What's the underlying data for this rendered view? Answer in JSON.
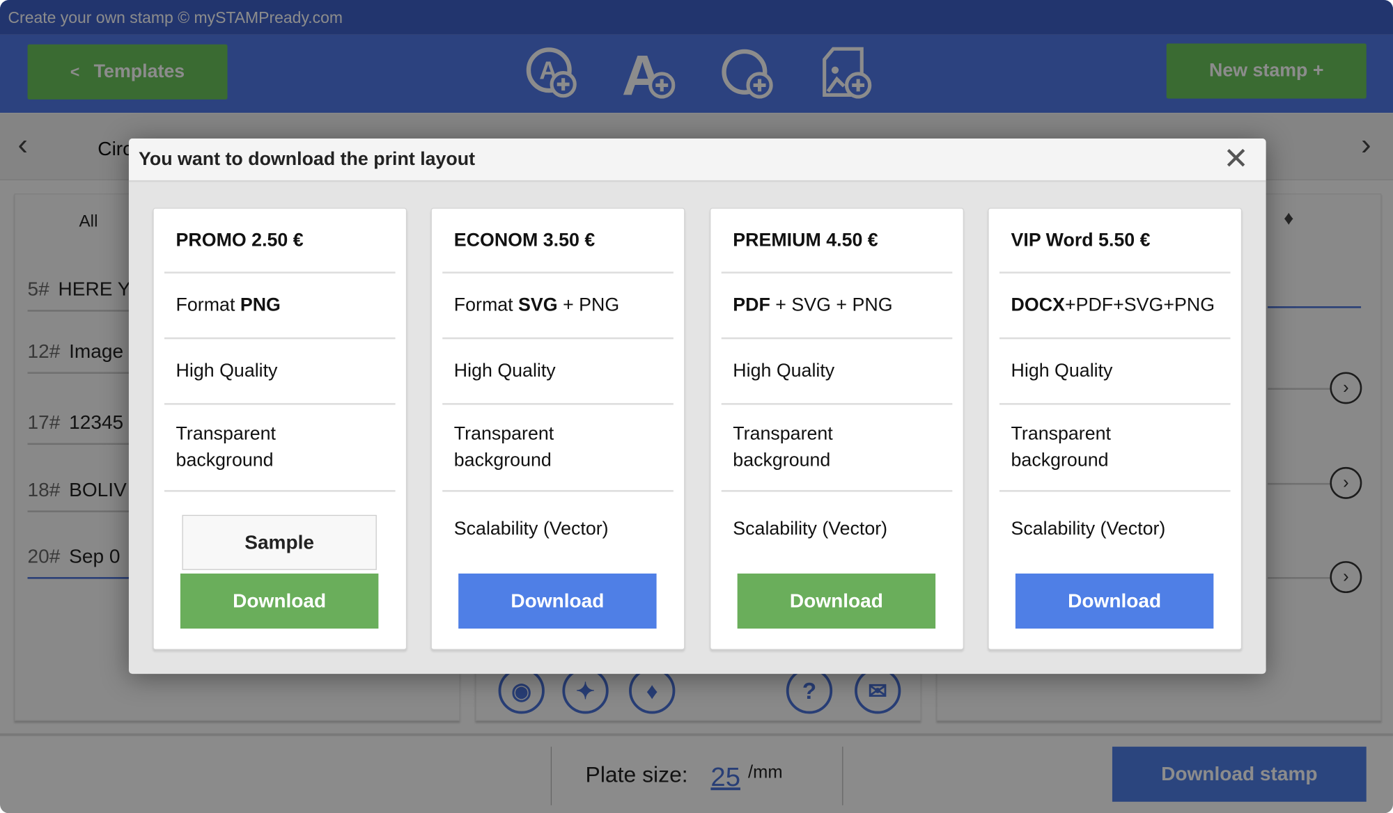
{
  "app": {
    "title": "Create your own stamp © mySTAMPready.com"
  },
  "toolbar": {
    "templates_label": "Templates",
    "templates_chevron": "<",
    "new_stamp_label": "New stamp +",
    "tools": [
      "add-circle-text-icon",
      "add-text-icon",
      "add-shape-icon",
      "add-image-icon"
    ]
  },
  "nav": {
    "current": "Circ"
  },
  "left_panel": {
    "tab": "All",
    "items": [
      {
        "num": "5#",
        "label": "HERE Y"
      },
      {
        "num": "12#",
        "label": "Image"
      },
      {
        "num": "17#",
        "label": "12345"
      },
      {
        "num": "18#",
        "label": "BOLIV"
      },
      {
        "num": "20#",
        "label": "Sep 0"
      }
    ]
  },
  "bottom": {
    "plate_label": "Plate size:",
    "plate_value": "25",
    "plate_unit": "/mm",
    "download_stamp": "Download stamp"
  },
  "modal": {
    "title": "You want to download the print layout",
    "plans": [
      {
        "title": "PROMO 2.50 €",
        "format_pre": "Format ",
        "format_bold": "PNG",
        "format_rest": "",
        "quality": "High Quality",
        "bg1": "Transparent",
        "bg2": "background",
        "sample": "Sample",
        "download": "Download",
        "color": "#6aae5b"
      },
      {
        "title": "ECONOM 3.50 €",
        "format_pre": "Format ",
        "format_bold": "SVG",
        "format_rest": " + PNG",
        "quality": "High Quality",
        "bg1": "Transparent",
        "bg2": "background",
        "scalability": "Scalability (Vector)",
        "download": "Download",
        "color": "#4f7fe6"
      },
      {
        "title": "PREMIUM 4.50 €",
        "format_bold": "PDF",
        "format_rest": " + SVG + PNG",
        "quality": "High Quality",
        "bg1": "Transparent",
        "bg2": "background",
        "scalability": "Scalability (Vector)",
        "download": "Download",
        "color": "#6aae5b"
      },
      {
        "title": "VIP Word 5.50 €",
        "format_bold": "DOCX",
        "format_rest": "+PDF+SVG+PNG",
        "quality": "High Quality",
        "bg1": "Transparent",
        "bg2": "background",
        "scalability": "Scalability (Vector)",
        "download": "Download",
        "color": "#4f7fe6"
      }
    ]
  }
}
